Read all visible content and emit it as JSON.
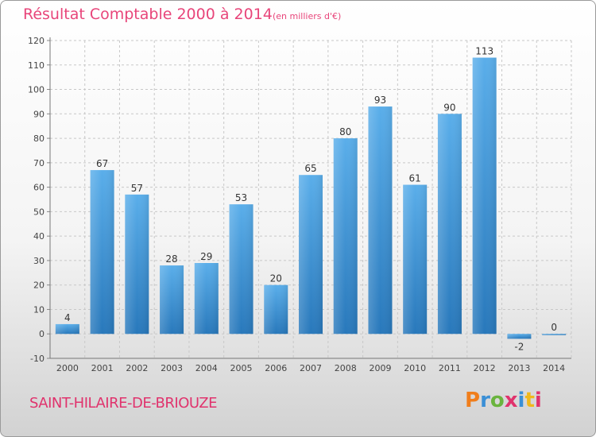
{
  "header": {
    "title": "Résultat Comptable 2000 à 2014",
    "subtitle": "(en milliers d'€)"
  },
  "footer": {
    "commune": "SAINT-HILAIRE-DE-BRIOUZE",
    "brand": "Proxiti"
  },
  "colors": {
    "title": "#e8457a",
    "bar_top": "#5aaeea",
    "bar_bottom": "#2878bb",
    "brand_letters": [
      "#f07e1c",
      "#3a8fd6",
      "#6ab43e",
      "#e0336d",
      "#3a8fd6",
      "#f0b81c",
      "#e0336d"
    ]
  },
  "chart_data": {
    "type": "bar",
    "categories": [
      "2000",
      "2001",
      "2002",
      "2003",
      "2004",
      "2005",
      "2006",
      "2007",
      "2008",
      "2009",
      "2010",
      "2011",
      "2012",
      "2013",
      "2014"
    ],
    "values": [
      4,
      67,
      57,
      28,
      29,
      53,
      20,
      65,
      80,
      93,
      61,
      90,
      113,
      -2,
      0
    ],
    "ylim": [
      -10,
      120
    ],
    "yticks": [
      -10,
      0,
      10,
      20,
      30,
      40,
      50,
      60,
      70,
      80,
      90,
      100,
      110,
      120
    ],
    "grid": true
  }
}
